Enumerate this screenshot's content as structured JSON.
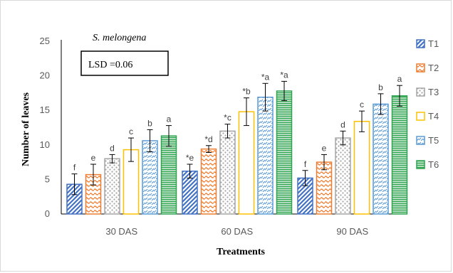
{
  "chart_data": {
    "type": "bar",
    "annotation_species": "S. melongena",
    "annotation_lsd": "LSD =0.06",
    "xlabel": "Treatments",
    "ylabel": "Number of leaves",
    "ylim": [
      0,
      25
    ],
    "yticks": [
      "0",
      "5",
      "10",
      "15",
      "20",
      "25"
    ],
    "categories": [
      "30 DAS",
      "60 DAS",
      "90 DAS"
    ],
    "grid": false,
    "legend_position": "right",
    "series": [
      {
        "name": "T1",
        "color": "#4472c4",
        "pattern": "diagonal-lines",
        "values": [
          4.3,
          6.2,
          5.2
        ],
        "errors": [
          1.5,
          1.0,
          1.1
        ],
        "labels": [
          "f",
          "*e",
          "f"
        ]
      },
      {
        "name": "T2",
        "color": "#ed7d31",
        "pattern": "wave",
        "values": [
          5.7,
          9.4,
          7.5
        ],
        "errors": [
          1.5,
          0.5,
          1.1
        ],
        "labels": [
          "e",
          "*d",
          "e"
        ]
      },
      {
        "name": "T3",
        "color": "#a5a5a5",
        "pattern": "dots",
        "values": [
          8.0,
          12.0,
          11.0
        ],
        "errors": [
          0.6,
          1.0,
          1.0
        ],
        "labels": [
          "d",
          "*c",
          "d"
        ]
      },
      {
        "name": "T4",
        "color": "#ffc000",
        "pattern": "none",
        "values": [
          9.3,
          14.8,
          13.4
        ],
        "errors": [
          1.7,
          2.0,
          1.5
        ],
        "labels": [
          "c",
          "*b",
          "c"
        ]
      },
      {
        "name": "T5",
        "color": "#5b9bd5",
        "pattern": "dashes",
        "values": [
          10.6,
          16.9,
          15.9
        ],
        "errors": [
          1.6,
          2.0,
          1.5
        ],
        "labels": [
          "b",
          "*a",
          "b"
        ]
      },
      {
        "name": "T6",
        "color": "#2ea44f",
        "pattern": "horizontal-lines",
        "values": [
          11.3,
          17.8,
          17.1
        ],
        "errors": [
          1.5,
          1.4,
          1.5
        ],
        "labels": [
          "a",
          "*a",
          "a"
        ]
      }
    ]
  }
}
